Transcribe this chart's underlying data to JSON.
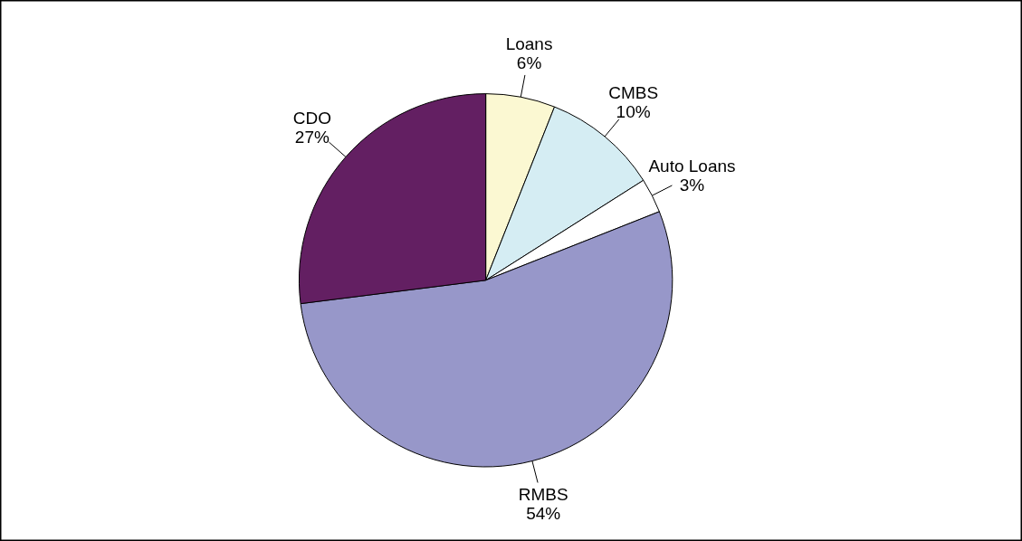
{
  "chart_data": {
    "type": "pie",
    "categories": [
      "Loans",
      "CMBS",
      "Auto Loans",
      "RMBS",
      "CDO"
    ],
    "values": [
      6,
      10,
      3,
      54,
      27
    ],
    "value_labels": [
      "6%",
      "10%",
      "3%",
      "54%",
      "27%"
    ],
    "colors": [
      "#fbf8d2",
      "#d5edf3",
      "#ffffff",
      "#9797c9",
      "#631f62"
    ]
  }
}
